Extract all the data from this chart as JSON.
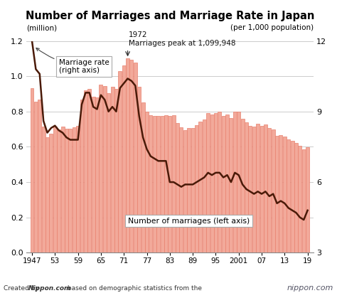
{
  "title": "Number of Marriages and Marriage Rate in Japan",
  "ylabel_left": "(million)",
  "ylabel_right": "(per 1,000 population)",
  "footer_italic": "Created by ",
  "footer_brand": "Nippon.com",
  "footer_rest": " based on demographic statistics from the\nMinistry of Health, Labor, and Welfare.",
  "annotation_line1": "1972",
  "annotation_line2": "Marriages peak at 1,099,948",
  "label_bar": "Number of marriages (left axis)",
  "label_line": "Marriage rate\n(right axis)",
  "bar_color": "#f2a99a",
  "bar_edge_color": "#e8806e",
  "line_color": "#4a1a08",
  "bg_color": "#ffffff",
  "grid_color": "#cccccc",
  "ylim_left": [
    0,
    1.2
  ],
  "ylim_right": [
    3,
    12
  ],
  "xlim": [
    1945.5,
    2020.5
  ],
  "yticks_left": [
    0,
    0.2,
    0.4,
    0.6,
    0.8,
    1.0,
    1.2
  ],
  "yticks_right": [
    3,
    6,
    9,
    12
  ],
  "xticks": [
    1947,
    1953,
    1959,
    1965,
    1971,
    1977,
    1983,
    1989,
    1995,
    2001,
    2007,
    2013,
    2019
  ],
  "xticklabels": [
    "1947",
    "53",
    "59",
    "65",
    "71",
    "77",
    "83",
    "89",
    "95",
    "2001",
    "07",
    "13",
    "19"
  ],
  "years": [
    1947,
    1948,
    1949,
    1950,
    1951,
    1952,
    1953,
    1954,
    1955,
    1956,
    1957,
    1958,
    1959,
    1960,
    1961,
    1962,
    1963,
    1964,
    1965,
    1966,
    1967,
    1968,
    1969,
    1970,
    1971,
    1972,
    1973,
    1974,
    1975,
    1976,
    1977,
    1978,
    1979,
    1980,
    1981,
    1982,
    1983,
    1984,
    1985,
    1986,
    1987,
    1988,
    1989,
    1990,
    1991,
    1992,
    1993,
    1994,
    1995,
    1996,
    1997,
    1998,
    1999,
    2000,
    2001,
    2002,
    2003,
    2004,
    2005,
    2006,
    2007,
    2008,
    2009,
    2010,
    2011,
    2012,
    2013,
    2014,
    2015,
    2016,
    2017,
    2018,
    2019
  ],
  "marriages_million": [
    0.934,
    0.854,
    0.866,
    0.715,
    0.656,
    0.676,
    0.715,
    0.7,
    0.714,
    0.703,
    0.703,
    0.709,
    0.72,
    0.866,
    0.92,
    0.93,
    0.884,
    0.879,
    0.954,
    0.946,
    0.905,
    0.94,
    0.927,
    1.029,
    1.061,
    1.1,
    1.095,
    1.077,
    0.941,
    0.85,
    0.8,
    0.778,
    0.775,
    0.774,
    0.777,
    0.779,
    0.774,
    0.779,
    0.736,
    0.709,
    0.696,
    0.707,
    0.708,
    0.722,
    0.742,
    0.754,
    0.792,
    0.782,
    0.791,
    0.798,
    0.775,
    0.784,
    0.763,
    0.798,
    0.799,
    0.757,
    0.74,
    0.72,
    0.714,
    0.73,
    0.72,
    0.726,
    0.707,
    0.7,
    0.661,
    0.668,
    0.66,
    0.644,
    0.635,
    0.621,
    0.607,
    0.586,
    0.599
  ],
  "marriage_rate": [
    12.0,
    10.8,
    10.6,
    8.6,
    8.1,
    8.3,
    8.4,
    8.2,
    8.1,
    7.9,
    7.8,
    7.8,
    7.8,
    9.3,
    9.8,
    9.8,
    9.2,
    9.1,
    9.7,
    9.5,
    9.0,
    9.2,
    9.0,
    10.0,
    10.2,
    10.4,
    10.3,
    10.1,
    8.8,
    7.9,
    7.4,
    7.1,
    7.0,
    6.9,
    6.9,
    6.9,
    6.0,
    6.0,
    5.9,
    5.8,
    5.9,
    5.9,
    5.9,
    6.0,
    6.1,
    6.2,
    6.4,
    6.3,
    6.4,
    6.4,
    6.2,
    6.3,
    6.0,
    6.4,
    6.3,
    5.9,
    5.7,
    5.6,
    5.5,
    5.6,
    5.5,
    5.6,
    5.4,
    5.5,
    5.1,
    5.2,
    5.1,
    4.9,
    4.8,
    4.7,
    4.5,
    4.4,
    4.8
  ]
}
